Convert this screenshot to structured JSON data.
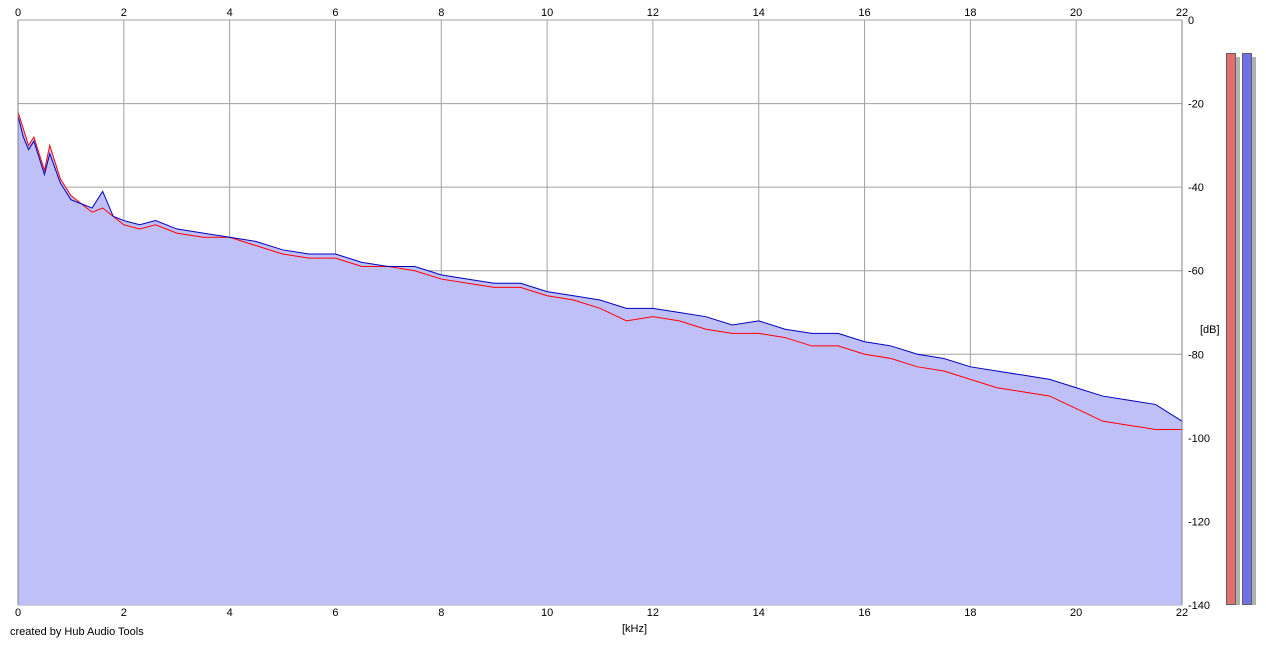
{
  "credit": "created by Hub Audio Tools",
  "colors": {
    "fill": "#c0c0f8",
    "grid": "#a0a0a0",
    "left_channel": "#ff0000",
    "right_channel": "#0000c0",
    "meter_left": "#e07070",
    "meter_right": "#7070e8",
    "meter_shadow": "#b0b0b0"
  },
  "meters": {
    "left_level_db": -8,
    "right_level_db": -8
  },
  "chart_data": {
    "type": "line",
    "title": "",
    "xlabel": "[kHz]",
    "ylabel": "[dB]",
    "xlim": [
      0,
      22
    ],
    "ylim": [
      -140,
      0
    ],
    "x_ticks": [
      0,
      2,
      4,
      6,
      8,
      10,
      12,
      14,
      16,
      18,
      20,
      22
    ],
    "y_ticks": [
      0,
      -20,
      -40,
      -60,
      -80,
      -100,
      -120,
      -140
    ],
    "grid": true,
    "series": [
      {
        "channel": "left",
        "x": [
          0,
          0.1,
          0.2,
          0.3,
          0.4,
          0.5,
          0.6,
          0.8,
          1,
          1.2,
          1.4,
          1.6,
          1.8,
          2,
          2.3,
          2.6,
          3,
          3.5,
          4,
          4.5,
          5,
          5.5,
          6,
          6.5,
          7,
          7.5,
          8,
          8.5,
          9,
          9.5,
          10,
          10.5,
          11,
          11.5,
          12,
          12.5,
          13,
          13.5,
          14,
          14.5,
          15,
          15.5,
          16,
          16.5,
          17,
          17.5,
          18,
          18.5,
          19,
          19.5,
          20,
          20.5,
          21,
          21.5,
          22
        ],
        "y": [
          -22,
          -26,
          -30,
          -28,
          -32,
          -36,
          -30,
          -38,
          -42,
          -44,
          -46,
          -45,
          -47,
          -49,
          -50,
          -49,
          -51,
          -52,
          -52,
          -54,
          -56,
          -57,
          -57,
          -59,
          -59,
          -60,
          -62,
          -63,
          -64,
          -64,
          -66,
          -67,
          -69,
          -72,
          -71,
          -72,
          -74,
          -75,
          -75,
          -76,
          -78,
          -78,
          -80,
          -81,
          -83,
          -84,
          -86,
          -88,
          -89,
          -90,
          -93,
          -96,
          -97,
          -98,
          -98
        ]
      },
      {
        "channel": "right",
        "x": [
          0,
          0.1,
          0.2,
          0.3,
          0.4,
          0.5,
          0.6,
          0.8,
          1,
          1.2,
          1.4,
          1.6,
          1.8,
          2,
          2.3,
          2.6,
          3,
          3.5,
          4,
          4.5,
          5,
          5.5,
          6,
          6.5,
          7,
          7.5,
          8,
          8.5,
          9,
          9.5,
          10,
          10.5,
          11,
          11.5,
          12,
          12.5,
          13,
          13.5,
          14,
          14.5,
          15,
          15.5,
          16,
          16.5,
          17,
          17.5,
          18,
          18.5,
          19,
          19.5,
          20,
          20.5,
          21,
          21.5,
          22
        ],
        "y": [
          -23,
          -28,
          -31,
          -29,
          -33,
          -37,
          -32,
          -39,
          -43,
          -44,
          -45,
          -41,
          -47,
          -48,
          -49,
          -48,
          -50,
          -51,
          -52,
          -53,
          -55,
          -56,
          -56,
          -58,
          -59,
          -59,
          -61,
          -62,
          -63,
          -63,
          -65,
          -66,
          -67,
          -69,
          -69,
          -70,
          -71,
          -73,
          -72,
          -74,
          -75,
          -75,
          -77,
          -78,
          -80,
          -81,
          -83,
          -84,
          -85,
          -86,
          -88,
          -90,
          -91,
          -92,
          -96
        ]
      }
    ]
  }
}
